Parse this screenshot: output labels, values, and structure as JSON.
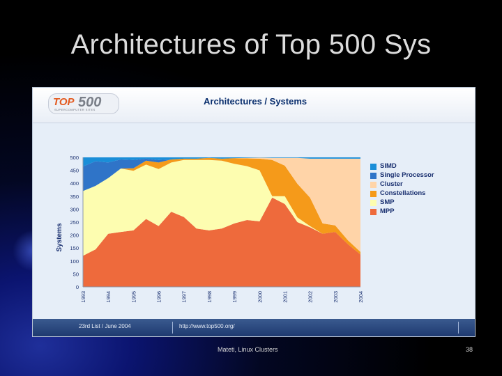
{
  "slide": {
    "title": "Architectures of Top 500 Sys",
    "author": "Mateti, Linux Clusters",
    "page_number": "38"
  },
  "panel": {
    "logo_text_top": "TOP",
    "logo_text_num": "500",
    "logo_subtitle": "SUPERCOMPUTER SITES",
    "chart_title": "Architectures / Systems",
    "footer_left": "23rd List / June 2004",
    "footer_right": "http://www.top500.org/"
  },
  "chart_data": {
    "type": "area",
    "stacked": true,
    "title": "Architectures / Systems",
    "ylabel": "Systems",
    "xlabel": "",
    "ylim": [
      0,
      500
    ],
    "yticks": [
      0,
      50,
      100,
      150,
      200,
      250,
      300,
      350,
      400,
      450,
      500
    ],
    "xtick_labels": [
      "1993",
      "1994",
      "1995",
      "1996",
      "1997",
      "1998",
      "1999",
      "2000",
      "2001",
      "2002",
      "2003",
      "2004"
    ],
    "legend_position": "right",
    "grid": false,
    "x": [
      1993.5,
      1994.0,
      1994.5,
      1995.0,
      1995.5,
      1996.0,
      1996.5,
      1997.0,
      1997.5,
      1998.0,
      1998.5,
      1999.0,
      1999.5,
      2000.0,
      2000.5,
      2001.0,
      2001.5,
      2002.0,
      2002.5,
      2003.0,
      2003.5,
      2004.0,
      2004.5
    ],
    "series": [
      {
        "name": "MPP",
        "color": "#ee6a3c",
        "values": [
          120,
          145,
          205,
          212,
          218,
          262,
          235,
          290,
          270,
          225,
          218,
          225,
          245,
          258,
          253,
          345,
          320,
          250,
          230,
          205,
          212,
          165,
          125
        ]
      },
      {
        "name": "SMP",
        "color": "#fdfdb0",
        "values": [
          250,
          245,
          215,
          245,
          230,
          210,
          220,
          190,
          220,
          265,
          272,
          262,
          230,
          208,
          197,
          5,
          30,
          18,
          5,
          0,
          0,
          0,
          0
        ]
      },
      {
        "name": "Constellations",
        "color": "#f59a1a",
        "values": [
          0,
          0,
          0,
          0,
          10,
          15,
          25,
          12,
          5,
          5,
          8,
          8,
          22,
          30,
          45,
          140,
          118,
          130,
          110,
          40,
          25,
          15,
          10
        ]
      },
      {
        "name": "Cluster",
        "color": "#ffd4a8",
        "values": [
          0,
          0,
          0,
          0,
          0,
          0,
          0,
          0,
          0,
          0,
          0,
          0,
          0,
          2,
          4,
          8,
          30,
          100,
          150,
          250,
          258,
          315,
          360
        ]
      },
      {
        "name": "Single Processor",
        "color": "#2f74c8",
        "values": [
          95,
          95,
          60,
          35,
          32,
          8,
          10,
          0,
          0,
          0,
          0,
          0,
          0,
          0,
          0,
          0,
          0,
          0,
          0,
          0,
          0,
          0,
          0
        ]
      },
      {
        "name": "SIMD",
        "color": "#1a8ed8",
        "values": [
          35,
          15,
          20,
          8,
          10,
          5,
          10,
          8,
          5,
          5,
          2,
          5,
          3,
          2,
          1,
          2,
          2,
          2,
          5,
          5,
          5,
          5,
          5
        ]
      }
    ],
    "legend_order": [
      "SIMD",
      "Single Processor",
      "Cluster",
      "Constellations",
      "SMP",
      "MPP"
    ]
  }
}
